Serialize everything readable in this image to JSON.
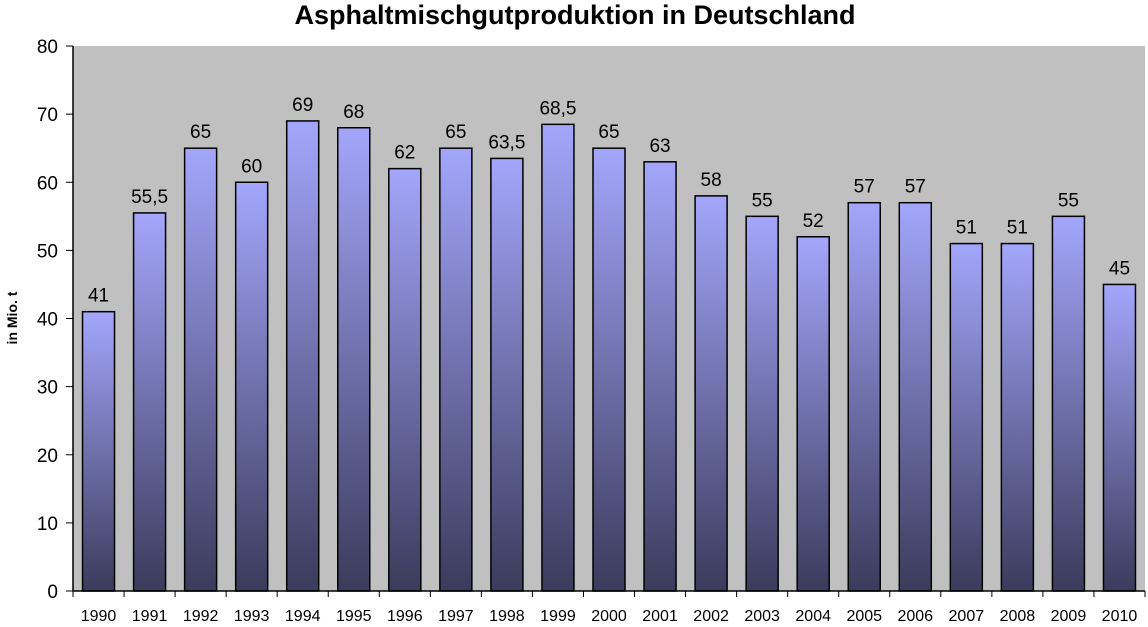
{
  "chart_data": {
    "type": "bar",
    "title": "Asphaltmischgutproduktion in Deutschland",
    "xlabel": "",
    "ylabel": "in Mio. t",
    "categories": [
      "1990",
      "1991",
      "1992",
      "1993",
      "1994",
      "1995",
      "1996",
      "1997",
      "1998",
      "1999",
      "2000",
      "2001",
      "2002",
      "2003",
      "2004",
      "2005",
      "2006",
      "2007",
      "2008",
      "2009",
      "2010"
    ],
    "values": [
      41,
      55.5,
      65,
      60,
      69,
      68,
      62,
      65,
      63.5,
      68.5,
      65,
      63,
      58,
      55,
      52,
      57,
      57,
      51,
      51,
      55,
      45
    ],
    "data_labels": [
      "41",
      "55,5",
      "65",
      "60",
      "69",
      "68",
      "62",
      "65",
      "63,5",
      "68,5",
      "65",
      "63",
      "58",
      "55",
      "52",
      "57",
      "57",
      "51",
      "51",
      "55",
      "45"
    ],
    "yticks": [
      "0",
      "10",
      "20",
      "30",
      "40",
      "50",
      "60",
      "70",
      "80"
    ],
    "ylim": [
      0,
      80
    ],
    "grid": false,
    "legend": "none",
    "colors": {
      "plot_background": "#c0c0c0",
      "bar_top": "#a3a6fb",
      "bar_bottom": "#3b3b5c",
      "bar_border": "#000000"
    }
  }
}
